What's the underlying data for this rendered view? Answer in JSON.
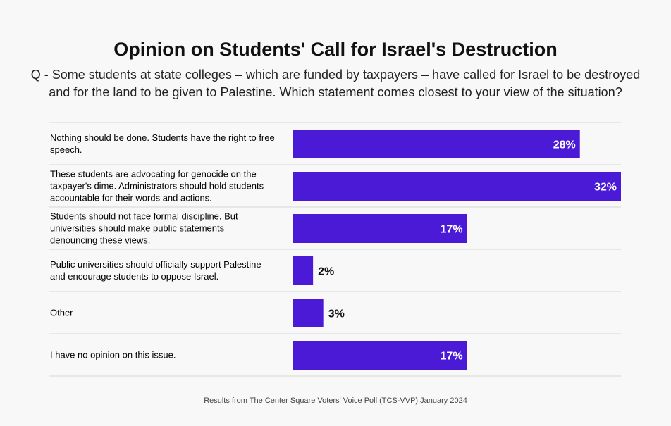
{
  "chart_data": {
    "type": "bar",
    "orientation": "horizontal",
    "title": "Opinion on Students' Call for Israel's Destruction",
    "subtitle": "Q - Some students at state colleges – which are funded by taxpayers – have called for Israel to be destroyed and for the land to be given to Palestine. Which statement comes closest to your view of the situation?",
    "categories": [
      [
        "Nothing should be done. Students have the right to free",
        "speech."
      ],
      [
        "These students are advocating for genocide on the",
        "taxpayer's dime. Administrators should hold students",
        "accountable for their words and actions."
      ],
      [
        "Students should not face formal discipline. But",
        "universities should make public statements",
        "denouncing these views."
      ],
      [
        "Public universities should officially support Palestine",
        "and encourage students to oppose Israel."
      ],
      [
        "Other"
      ],
      [
        "I have no opinion on this issue."
      ]
    ],
    "values": [
      28,
      32,
      17,
      2,
      3,
      17
    ],
    "data_labels": [
      "28%",
      "32%",
      "17%",
      "2%",
      "3%",
      "17%"
    ],
    "unit": "%",
    "bar_color": "#4a1ad6",
    "grid": false,
    "footer": "Results from The Center Square Voters' Voice Poll (TCS-VVP) January 2024"
  }
}
